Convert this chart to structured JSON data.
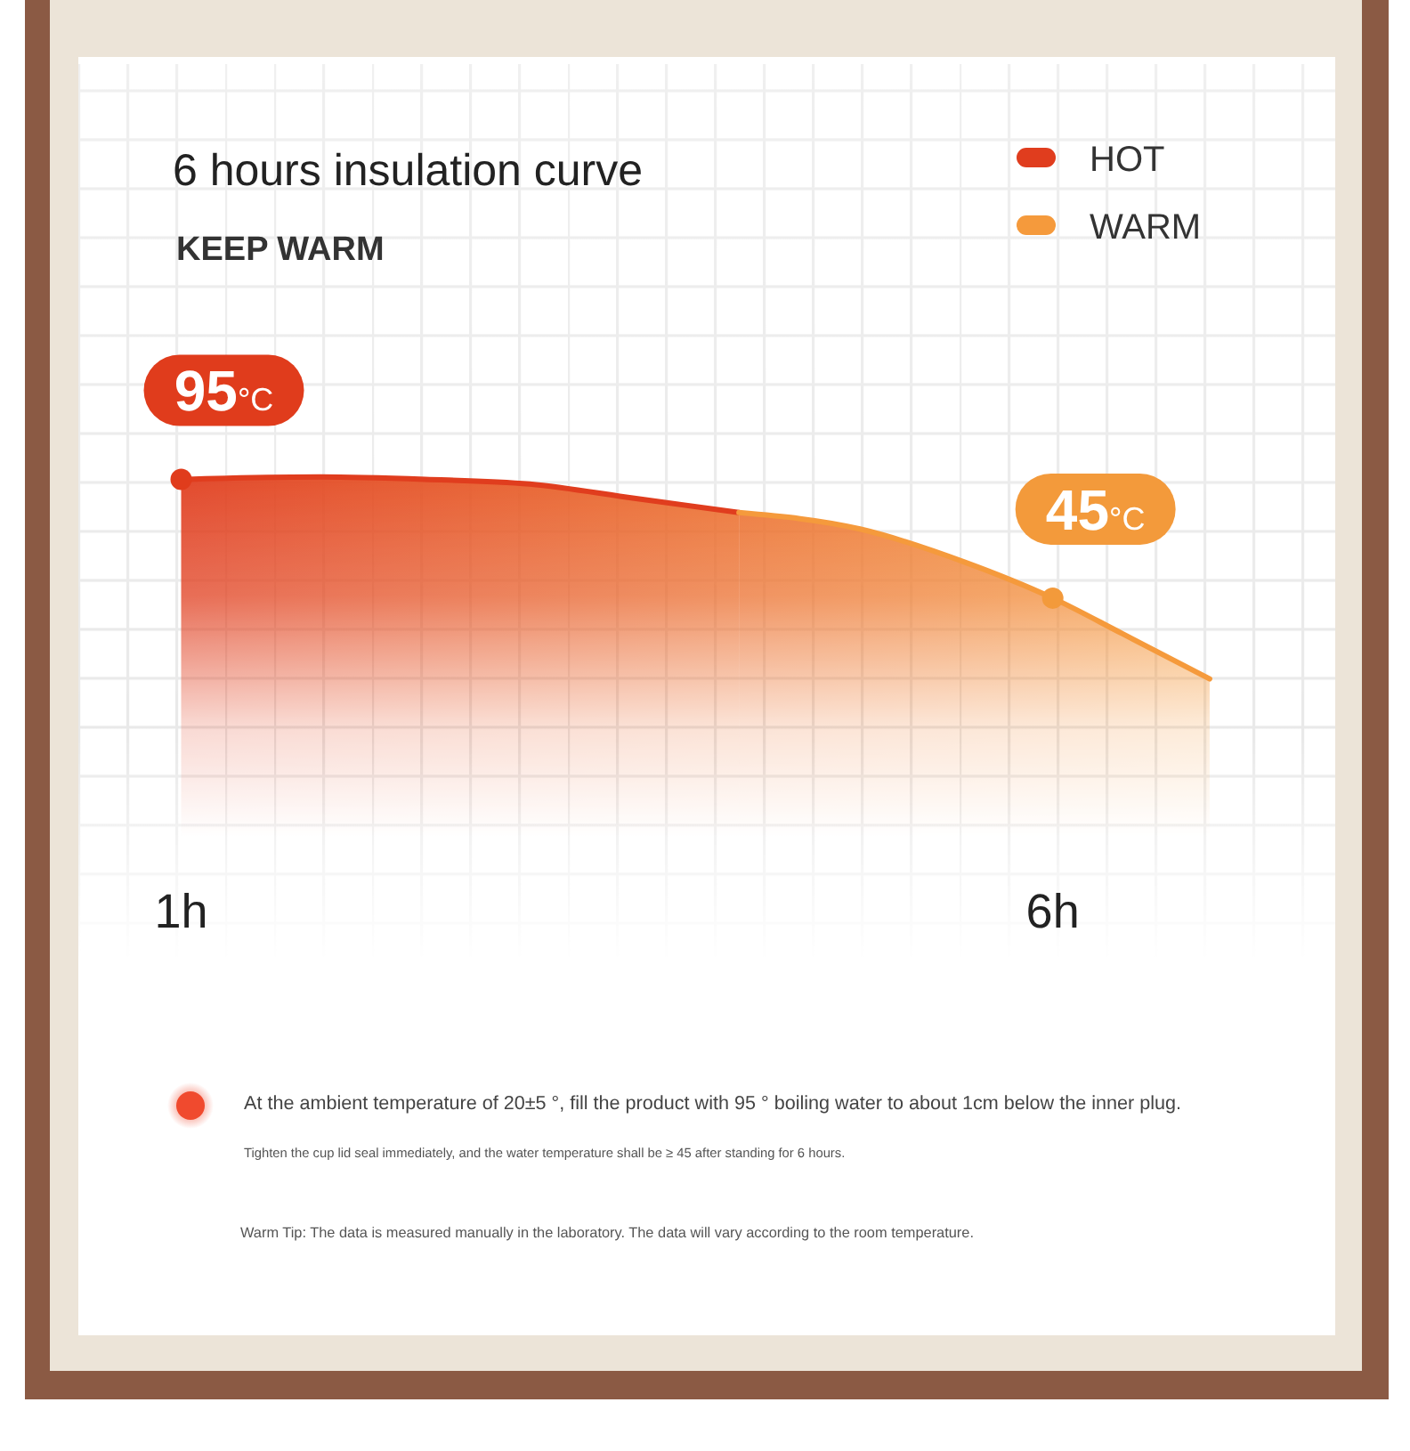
{
  "chart_data": {
    "type": "area",
    "title": "6 hours insulation curve",
    "subtitle": "KEEP WARM",
    "xlim": [
      0.4,
      7.6
    ],
    "xticks": [
      {
        "value": 1,
        "label": "1h"
      },
      {
        "value": 6,
        "label": "6h"
      }
    ],
    "tick_labels": "x",
    "legend": "top right",
    "series": [
      {
        "name": "HOT",
        "color": "#e03d1e",
        "x": [
          1,
          1.8,
          2.4,
          3,
          3.6,
          4.2
        ],
        "values": [
          95,
          96,
          95,
          93,
          87,
          81
        ]
      },
      {
        "name": "WARM",
        "color": "#f59a3c",
        "x": [
          4.2,
          4.9,
          5.5,
          6,
          6.4,
          6.9
        ],
        "values": [
          81,
          74,
          60,
          45,
          30,
          11
        ]
      },
      {
        "type": "scatter",
        "marker": "circle",
        "x": [
          1,
          6
        ],
        "values": [
          95,
          45
        ],
        "colors": [
          "#e03c1c",
          "#f39a3b"
        ],
        "value_labels": [
          "95°C",
          "45°C"
        ]
      }
    ],
    "annotations": [
      "At the ambient temperature of 20±5 °, fill the product with 95 ° boiling water to about 1cm below the inner plug.",
      "Tighten the cup lid seal immediately, and the water temperature shall be ≥ 45 after standing for 6 hours.",
      "Warm Tip: The data is measured manually in the laboratory. The data will vary according to the room temperature."
    ]
  }
}
